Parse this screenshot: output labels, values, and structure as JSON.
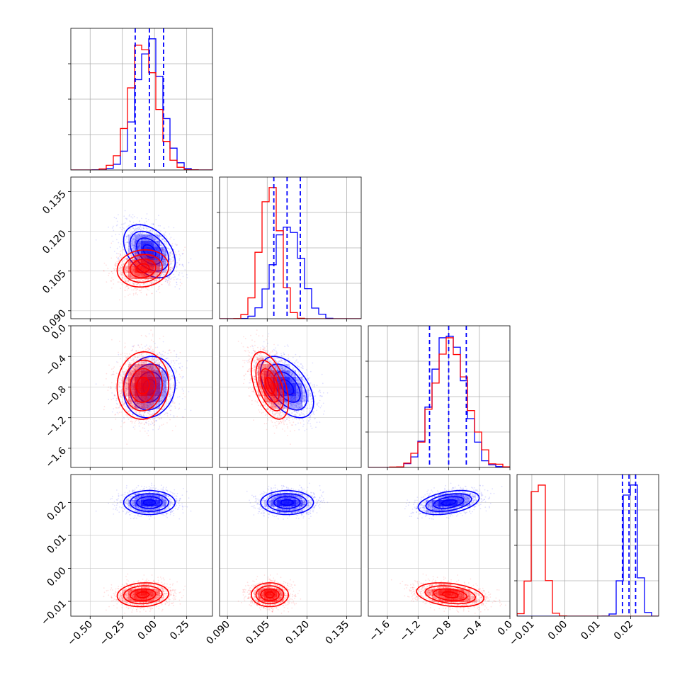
{
  "chart_data": {
    "type": "corner",
    "parameters": [
      "p0",
      "p1",
      "p2",
      "p3"
    ],
    "grid": true,
    "colors": {
      "blue": "#0000ff",
      "red": "#ff0000"
    },
    "axes": {
      "p0": {
        "range": [
          -0.65,
          0.45
        ],
        "ticks": [
          -0.5,
          -0.25,
          0.0,
          0.25
        ],
        "tick_labels": [
          "−0.50",
          "−0.25",
          "0.00",
          "0.25"
        ]
      },
      "p1": {
        "range": [
          0.087,
          0.1405
        ],
        "ticks": [
          0.09,
          0.105,
          0.12,
          0.135
        ],
        "tick_labels": [
          "0.090",
          "0.105",
          "0.120",
          "0.135"
        ]
      },
      "p2": {
        "range": [
          -1.85,
          0.0
        ],
        "ticks": [
          -1.6,
          -1.2,
          -0.8,
          -0.4,
          0.0
        ],
        "tick_labels": [
          "−1.6",
          "−1.2",
          "−0.8",
          "−0.4",
          "0.0"
        ]
      },
      "p3": {
        "range": [
          -0.0145,
          0.0285
        ],
        "ticks": [
          -0.01,
          0.0,
          0.01,
          0.02
        ],
        "tick_labels": [
          "−0.01",
          "0.00",
          "0.01",
          "0.02"
        ]
      }
    },
    "series": [
      {
        "color": "blue",
        "means": [
          -0.04,
          0.1125,
          -0.8,
          0.02
        ],
        "sds": [
          0.1,
          0.005,
          0.2,
          0.0018
        ],
        "correlations": {
          "1-0": -0.4,
          "2-0": 0.1,
          "2-1": -0.5,
          "3-0": 0.0,
          "3-1": 0.0,
          "3-2": 0.4
        },
        "quantile_lines": {
          "p0": [
            -0.15,
            -0.04,
            0.07
          ],
          "p1": [
            0.1075,
            0.1125,
            0.1175
          ],
          "p2": [
            -1.05,
            -0.8,
            -0.57
          ],
          "p3": [
            0.0175,
            0.0195,
            0.0215
          ]
        }
      },
      {
        "color": "red",
        "means": [
          -0.09,
          0.106,
          -0.78,
          -0.008
        ],
        "sds": [
          0.1,
          0.0035,
          0.22,
          0.0018
        ],
        "correlations": {
          "1-0": 0.1,
          "2-0": 0.05,
          "2-1": -0.5,
          "3-0": 0.1,
          "3-1": 0.0,
          "3-2": -0.3
        },
        "quantile_lines": {}
      }
    ]
  }
}
